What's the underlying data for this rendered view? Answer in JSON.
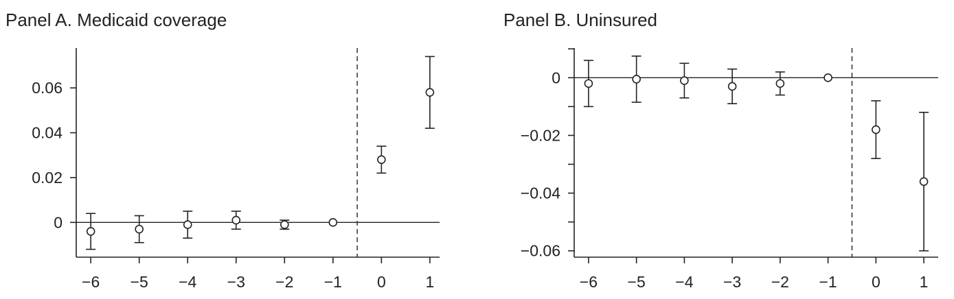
{
  "chart_data": [
    {
      "type": "scatter",
      "title": "Panel A. Medicaid coverage",
      "xlabel": "",
      "ylabel": "",
      "x": [
        -6,
        -5,
        -4,
        -3,
        -2,
        -1,
        0,
        1
      ],
      "x_tick_labels": [
        "−6",
        "−5",
        "−4",
        "−3",
        "−2",
        "−1",
        "0",
        "1"
      ],
      "y_ticks": [
        0,
        0.02,
        0.04,
        0.06
      ],
      "y_tick_labels": [
        "0",
        "0.02",
        "0.04",
        "0.06"
      ],
      "xlim": [
        -6.3,
        1.2
      ],
      "ylim": [
        -0.0155,
        0.0778
      ],
      "series": [
        {
          "estimate": [
            -0.004,
            -0.003,
            -0.001,
            0.001,
            -0.001,
            0.0,
            0.028,
            0.058
          ],
          "ci_low": [
            -0.012,
            -0.009,
            -0.007,
            -0.003,
            -0.003,
            null,
            0.022,
            0.042
          ],
          "ci_high": [
            0.004,
            0.003,
            0.005,
            0.005,
            0.001,
            null,
            0.034,
            0.074
          ]
        }
      ],
      "reference_line_y": 0,
      "vertical_dashed_line_x": -0.5,
      "grid": false,
      "legend": "none"
    },
    {
      "type": "scatter",
      "title": "Panel B. Uninsured",
      "xlabel": "",
      "ylabel": "",
      "x": [
        -6,
        -5,
        -4,
        -3,
        -2,
        -1,
        0,
        1
      ],
      "x_tick_labels": [
        "−6",
        "−5",
        "−4",
        "−3",
        "−2",
        "−1",
        "0",
        "1"
      ],
      "y_ticks": [
        0,
        -0.02,
        -0.04,
        -0.06
      ],
      "y_tick_labels": [
        "0",
        "−0.02",
        "−0.04",
        "−0.06"
      ],
      "y_minor_ticks": [
        0.01,
        -0.01,
        -0.03,
        -0.05
      ],
      "xlim": [
        -6.3,
        1.3
      ],
      "ylim": [
        -0.0622,
        0.0103
      ],
      "series": [
        {
          "estimate": [
            -0.002,
            -0.0005,
            -0.001,
            -0.003,
            -0.002,
            0.0,
            -0.018,
            -0.036
          ],
          "ci_low": [
            -0.01,
            -0.0085,
            -0.007,
            -0.009,
            -0.006,
            null,
            -0.028,
            -0.06
          ],
          "ci_high": [
            0.006,
            0.0075,
            0.005,
            0.003,
            0.002,
            null,
            -0.008,
            -0.012
          ]
        }
      ],
      "reference_line_y": 0,
      "vertical_dashed_line_x": -0.5,
      "grid": false,
      "legend": "none"
    }
  ]
}
